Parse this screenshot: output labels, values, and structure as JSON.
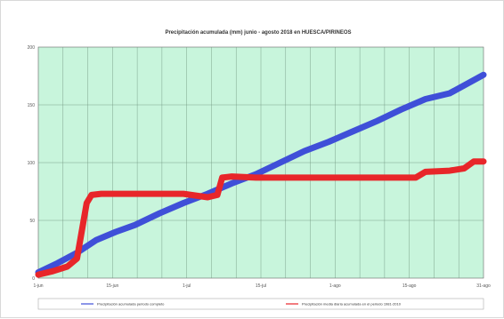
{
  "chart_data": {
    "type": "line",
    "title": "Precipitación acumulada (mm) junio - agosto 2018 en HUESCA/PIRINEOS",
    "xlabel": "",
    "ylabel": "",
    "x_ticks": [
      "1-jun",
      "15-jun",
      "1-jul",
      "15-jul",
      "1-ago",
      "15-ago",
      "31-ago"
    ],
    "y_ticks": [
      "0",
      "50",
      "100",
      "150",
      "200"
    ],
    "ylim": [
      0,
      200
    ],
    "xlim": [
      0,
      92
    ],
    "grid": true,
    "legend_position": "bottom",
    "plot_background": "#c8f5dc",
    "series": [
      {
        "name": "Precipitación acumulada periodo completo",
        "color": "#3f4fd8",
        "x": [
          0,
          4,
          8,
          12,
          16,
          20,
          25,
          30,
          35,
          40,
          45,
          50,
          55,
          60,
          65,
          70,
          75,
          80,
          85,
          92
        ],
        "values": [
          5,
          13,
          22,
          33,
          40,
          46,
          56,
          65,
          73,
          82,
          90,
          100,
          110,
          118,
          127,
          136,
          146,
          155,
          160,
          176
        ]
      },
      {
        "name": "Precipitación media diaria acumulada en el periodo 1981-2010",
        "color": "#e8262a",
        "x": [
          0,
          3,
          6,
          8,
          10,
          11,
          13,
          16,
          20,
          25,
          30,
          35,
          37,
          38,
          40,
          45,
          50,
          55,
          60,
          65,
          70,
          75,
          78,
          80,
          85,
          88,
          90,
          92
        ],
        "values": [
          3,
          6,
          10,
          17,
          65,
          72,
          73,
          73,
          73,
          73,
          73,
          70,
          72,
          87,
          88,
          87,
          87,
          87,
          87,
          87,
          87,
          87,
          87,
          92,
          93,
          95,
          101,
          101
        ]
      }
    ]
  }
}
